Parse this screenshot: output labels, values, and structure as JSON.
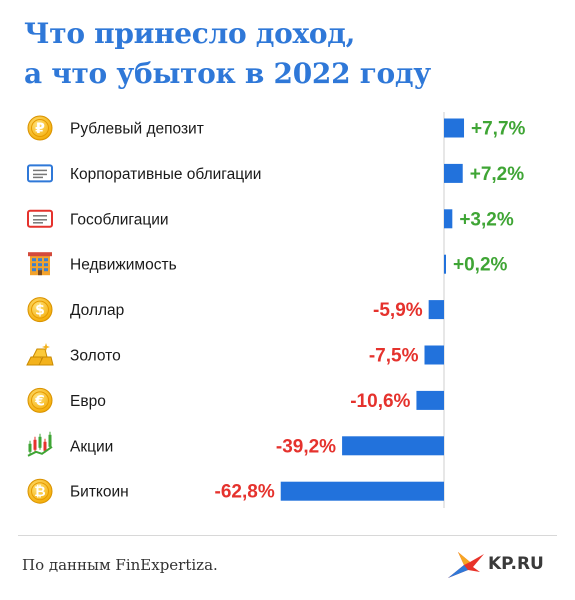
{
  "title": {
    "line1": "Что принесло доход,",
    "line2": "а что убыток в 2022 году"
  },
  "chart_data": {
    "type": "bar",
    "orientation": "horizontal",
    "categories": [
      "Рублевый депозит",
      "Корпоративные облигации",
      "Гособлигации",
      "Недвижимость",
      "Доллар",
      "Золото",
      "Евро",
      "Акции",
      "Биткоин"
    ],
    "values": [
      7.7,
      7.2,
      3.2,
      0.2,
      -5.9,
      -7.5,
      -10.6,
      -39.2,
      -62.8
    ],
    "value_labels": [
      "+7,7%",
      "+7,2%",
      "+3,2%",
      "+0,2%",
      "-5,9%",
      "-7,5%",
      "-10,6%",
      "-39,2%",
      "-62,8%"
    ],
    "icons": [
      "ruble-coin-icon",
      "corporate-bond-icon",
      "gov-bond-icon",
      "building-icon",
      "dollar-coin-icon",
      "gold-bars-icon",
      "euro-coin-icon",
      "stock-candles-icon",
      "bitcoin-coin-icon"
    ],
    "xlim": [
      -62.8,
      7.7
    ],
    "grid": false,
    "colors": {
      "bar": "#2272dc",
      "positive": "#3fa535",
      "negative": "#e5322d",
      "axis": "#cfcfcf"
    }
  },
  "footer": {
    "source": "По данным FinExpertiza.",
    "logo_text": "KP.RU",
    "logo_icon": "swallow-bird-icon"
  }
}
